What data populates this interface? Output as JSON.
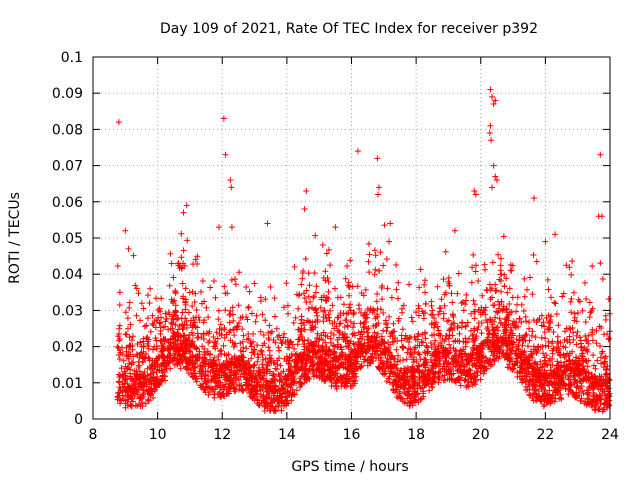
{
  "chart_data": {
    "type": "scatter",
    "title": "Day 109 of 2021, Rate Of TEC Index for receiver p392",
    "xlabel": "GPS time / hours",
    "ylabel": "ROTI / TECUs",
    "xlim": [
      8,
      24
    ],
    "ylim": [
      0,
      0.1
    ],
    "xticks": [
      "8",
      "10",
      "12",
      "14",
      "16",
      "18",
      "20",
      "22",
      "24"
    ],
    "yticks": [
      "0",
      "0.01",
      "0.02",
      "0.03",
      "0.04",
      "0.05",
      "0.06",
      "0.07",
      "0.08",
      "0.09",
      "0.1"
    ],
    "grid": true,
    "marker": "+",
    "color": "#ff0000",
    "x_start": 8.75,
    "x_end": 24.0,
    "outliers": [
      [
        8.8,
        0.082
      ],
      [
        12.05,
        0.083
      ],
      [
        12.1,
        0.073
      ],
      [
        12.25,
        0.066
      ],
      [
        12.28,
        0.064
      ],
      [
        16.2,
        0.074
      ],
      [
        16.8,
        0.072
      ],
      [
        16.85,
        0.064
      ],
      [
        16.82,
        0.062
      ],
      [
        20.3,
        0.091
      ],
      [
        20.35,
        0.089
      ],
      [
        20.4,
        0.087
      ],
      [
        20.45,
        0.088
      ],
      [
        20.3,
        0.081
      ],
      [
        20.28,
        0.079
      ],
      [
        20.32,
        0.077
      ],
      [
        20.4,
        0.07
      ],
      [
        20.45,
        0.067
      ],
      [
        20.5,
        0.066
      ],
      [
        20.35,
        0.064
      ],
      [
        19.8,
        0.063
      ],
      [
        19.85,
        0.062
      ],
      [
        21.65,
        0.061
      ],
      [
        23.7,
        0.073
      ],
      [
        23.65,
        0.056
      ],
      [
        23.75,
        0.056
      ],
      [
        10.9,
        0.059
      ],
      [
        10.8,
        0.057
      ],
      [
        14.6,
        0.063
      ],
      [
        14.55,
        0.058
      ],
      [
        13.4,
        0.054
      ],
      [
        11.9,
        0.053
      ],
      [
        12.3,
        0.053
      ],
      [
        15.5,
        0.053
      ],
      [
        17.2,
        0.054
      ],
      [
        19.2,
        0.052
      ],
      [
        22.3,
        0.051
      ],
      [
        22.0,
        0.049
      ],
      [
        9.0,
        0.052
      ],
      [
        9.1,
        0.047
      ]
    ]
  }
}
